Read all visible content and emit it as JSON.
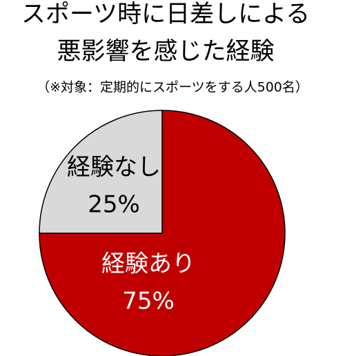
{
  "chart_data": {
    "type": "pie",
    "title": [
      "スポーツ時に日差しによる",
      "悪影響を感じた経験"
    ],
    "subtitle": "（※対象：定期的にスポーツをする人500名）",
    "categories": [
      "経験あり",
      "経験なし"
    ],
    "values": [
      75,
      25
    ],
    "value_labels": [
      "75%",
      "25%"
    ],
    "colors": [
      "#c00000",
      "#d9d9d9"
    ],
    "label_colors": [
      "#ffffff",
      "#000000"
    ]
  }
}
